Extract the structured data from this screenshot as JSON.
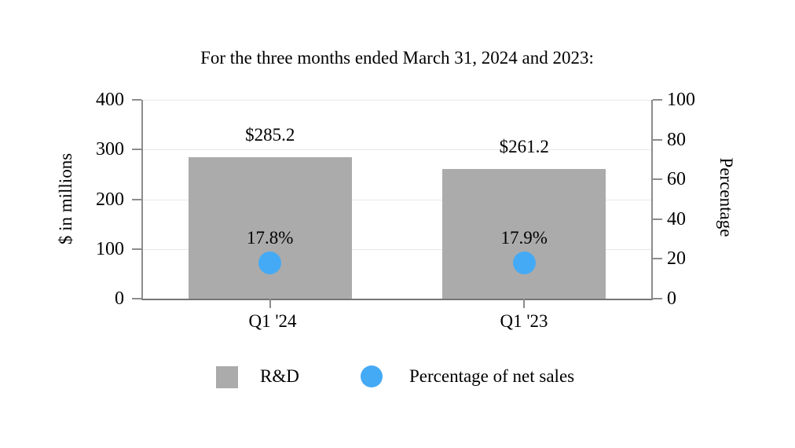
{
  "title": "For the three months ended March 31, 2024 and 2023:",
  "chart_data": {
    "type": "bar",
    "title": "For the three months ended March 31, 2024 and 2023:",
    "categories": [
      "Q1 '24",
      "Q1 '23"
    ],
    "series": [
      {
        "name": "R&D",
        "type": "bar",
        "axis": "left",
        "values": [
          285.2,
          261.2
        ],
        "point_labels": [
          "$285.2",
          "$261.2"
        ],
        "color": "#ABABAB"
      },
      {
        "name": "Percentage of net sales",
        "type": "point",
        "axis": "right",
        "values": [
          17.8,
          17.9
        ],
        "point_labels": [
          "17.8%",
          "17.9%"
        ],
        "color": "#45AAF5"
      }
    ],
    "left_axis": {
      "label": "$ in millions",
      "min": 0,
      "max": 400,
      "ticks": [
        "400",
        "300",
        "200",
        "100",
        "0"
      ]
    },
    "right_axis": {
      "label": "Percentage",
      "min": 0,
      "max": 100,
      "ticks": [
        "100",
        "80",
        "60",
        "40",
        "20",
        "0"
      ]
    },
    "grid": true,
    "legend_position": "bottom",
    "colors": {
      "axis_line": "#8C8C8C",
      "gridline": "#E8E8E8",
      "text": "#000000"
    }
  },
  "legend": {
    "items": [
      {
        "label": "R&D",
        "swatch": "square",
        "color": "#ABABAB"
      },
      {
        "label": "Percentage of net sales",
        "swatch": "circle",
        "color": "#45AAF5"
      }
    ]
  }
}
